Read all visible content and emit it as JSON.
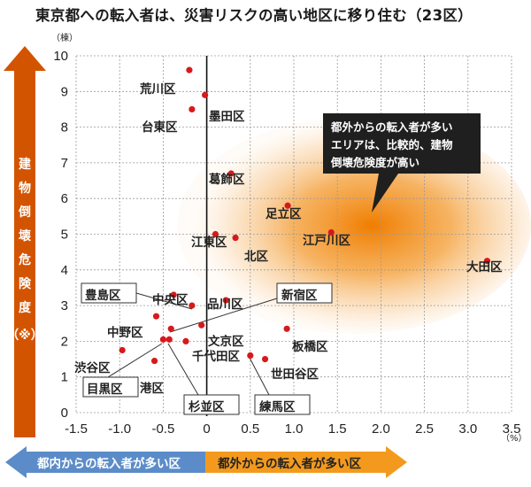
{
  "title": "東京都への転入者は、災害リスクの高い地区に移り住む（23区）",
  "chart_data": {
    "type": "scatter",
    "y_unit": "（棟）",
    "x_unit": "（%）",
    "xlim": [
      -1.5,
      3.5
    ],
    "ylim": [
      0,
      10
    ],
    "x_ticks": [
      "-1.5",
      "-1.0",
      "-0.5",
      "0",
      "0.5",
      "1.0",
      "1.5",
      "2.0",
      "2.5",
      "3.0",
      "3.5"
    ],
    "y_ticks": [
      "0",
      "1",
      "2",
      "3",
      "4",
      "5",
      "6",
      "7",
      "8",
      "9",
      "10"
    ],
    "ylabel_chars": [
      "建",
      "物",
      "倒",
      "壊",
      "危",
      "険",
      "度"
    ],
    "ylabel_note": "（※）",
    "xlabel_left": "都内からの転入者が多い区",
    "xlabel_right": "都外からの転入者が多い区",
    "callout_lines": [
      "都外からの転入者が多い",
      "エリアは、比較的、建物",
      "倒壊危険度が高い"
    ],
    "colors": {
      "point": "#d7191c",
      "left_arrow": "#5b8cc9",
      "right_arrow": "#f39a1e",
      "ylabel_arrow": "#d35400",
      "callout": "#222222",
      "highlight": "#f07d00"
    },
    "points": [
      {
        "name": "荒川区",
        "x": -0.2,
        "y": 9.6,
        "boxed": false
      },
      {
        "name": "墨田区",
        "x": -0.02,
        "y": 8.9,
        "boxed": false
      },
      {
        "name": "台東区",
        "x": -0.17,
        "y": 8.5,
        "boxed": false
      },
      {
        "name": "葛飾区",
        "x": 0.28,
        "y": 6.7,
        "boxed": false
      },
      {
        "name": "足立区",
        "x": 0.93,
        "y": 5.8,
        "boxed": false
      },
      {
        "name": "江戸川区",
        "x": 1.43,
        "y": 5.05,
        "boxed": false
      },
      {
        "name": "江東区",
        "x": 0.1,
        "y": 5.0,
        "boxed": false
      },
      {
        "name": "北区",
        "x": 0.33,
        "y": 4.9,
        "boxed": false
      },
      {
        "name": "大田区",
        "x": 3.22,
        "y": 4.25,
        "boxed": false
      },
      {
        "name": "中央区",
        "x": -0.38,
        "y": 3.3,
        "boxed": false
      },
      {
        "name": "品川区",
        "x": 0.22,
        "y": 3.15,
        "boxed": false
      },
      {
        "name": "豊島区",
        "x": -0.17,
        "y": 3.0,
        "boxed": true
      },
      {
        "name": "新宿区",
        "x": -0.41,
        "y": 2.35,
        "boxed": true
      },
      {
        "name": "中野区",
        "x": -0.58,
        "y": 2.7,
        "boxed": false
      },
      {
        "name": "文京区",
        "x": -0.06,
        "y": 2.45,
        "boxed": false
      },
      {
        "name": "板橋区",
        "x": 0.92,
        "y": 2.35,
        "boxed": false
      },
      {
        "name": "千代田区",
        "x": -0.24,
        "y": 2.0,
        "boxed": false
      },
      {
        "name": "杉並区",
        "x": -0.43,
        "y": 2.05,
        "boxed": true
      },
      {
        "name": "目黒区",
        "x": -0.5,
        "y": 2.05,
        "boxed": true
      },
      {
        "name": "渋谷区",
        "x": -0.97,
        "y": 1.75,
        "boxed": false
      },
      {
        "name": "港区",
        "x": -0.6,
        "y": 1.45,
        "boxed": false
      },
      {
        "name": "練馬区",
        "x": 0.5,
        "y": 1.6,
        "boxed": true
      },
      {
        "name": "世田谷区",
        "x": 0.67,
        "y": 1.5,
        "boxed": false
      }
    ]
  }
}
